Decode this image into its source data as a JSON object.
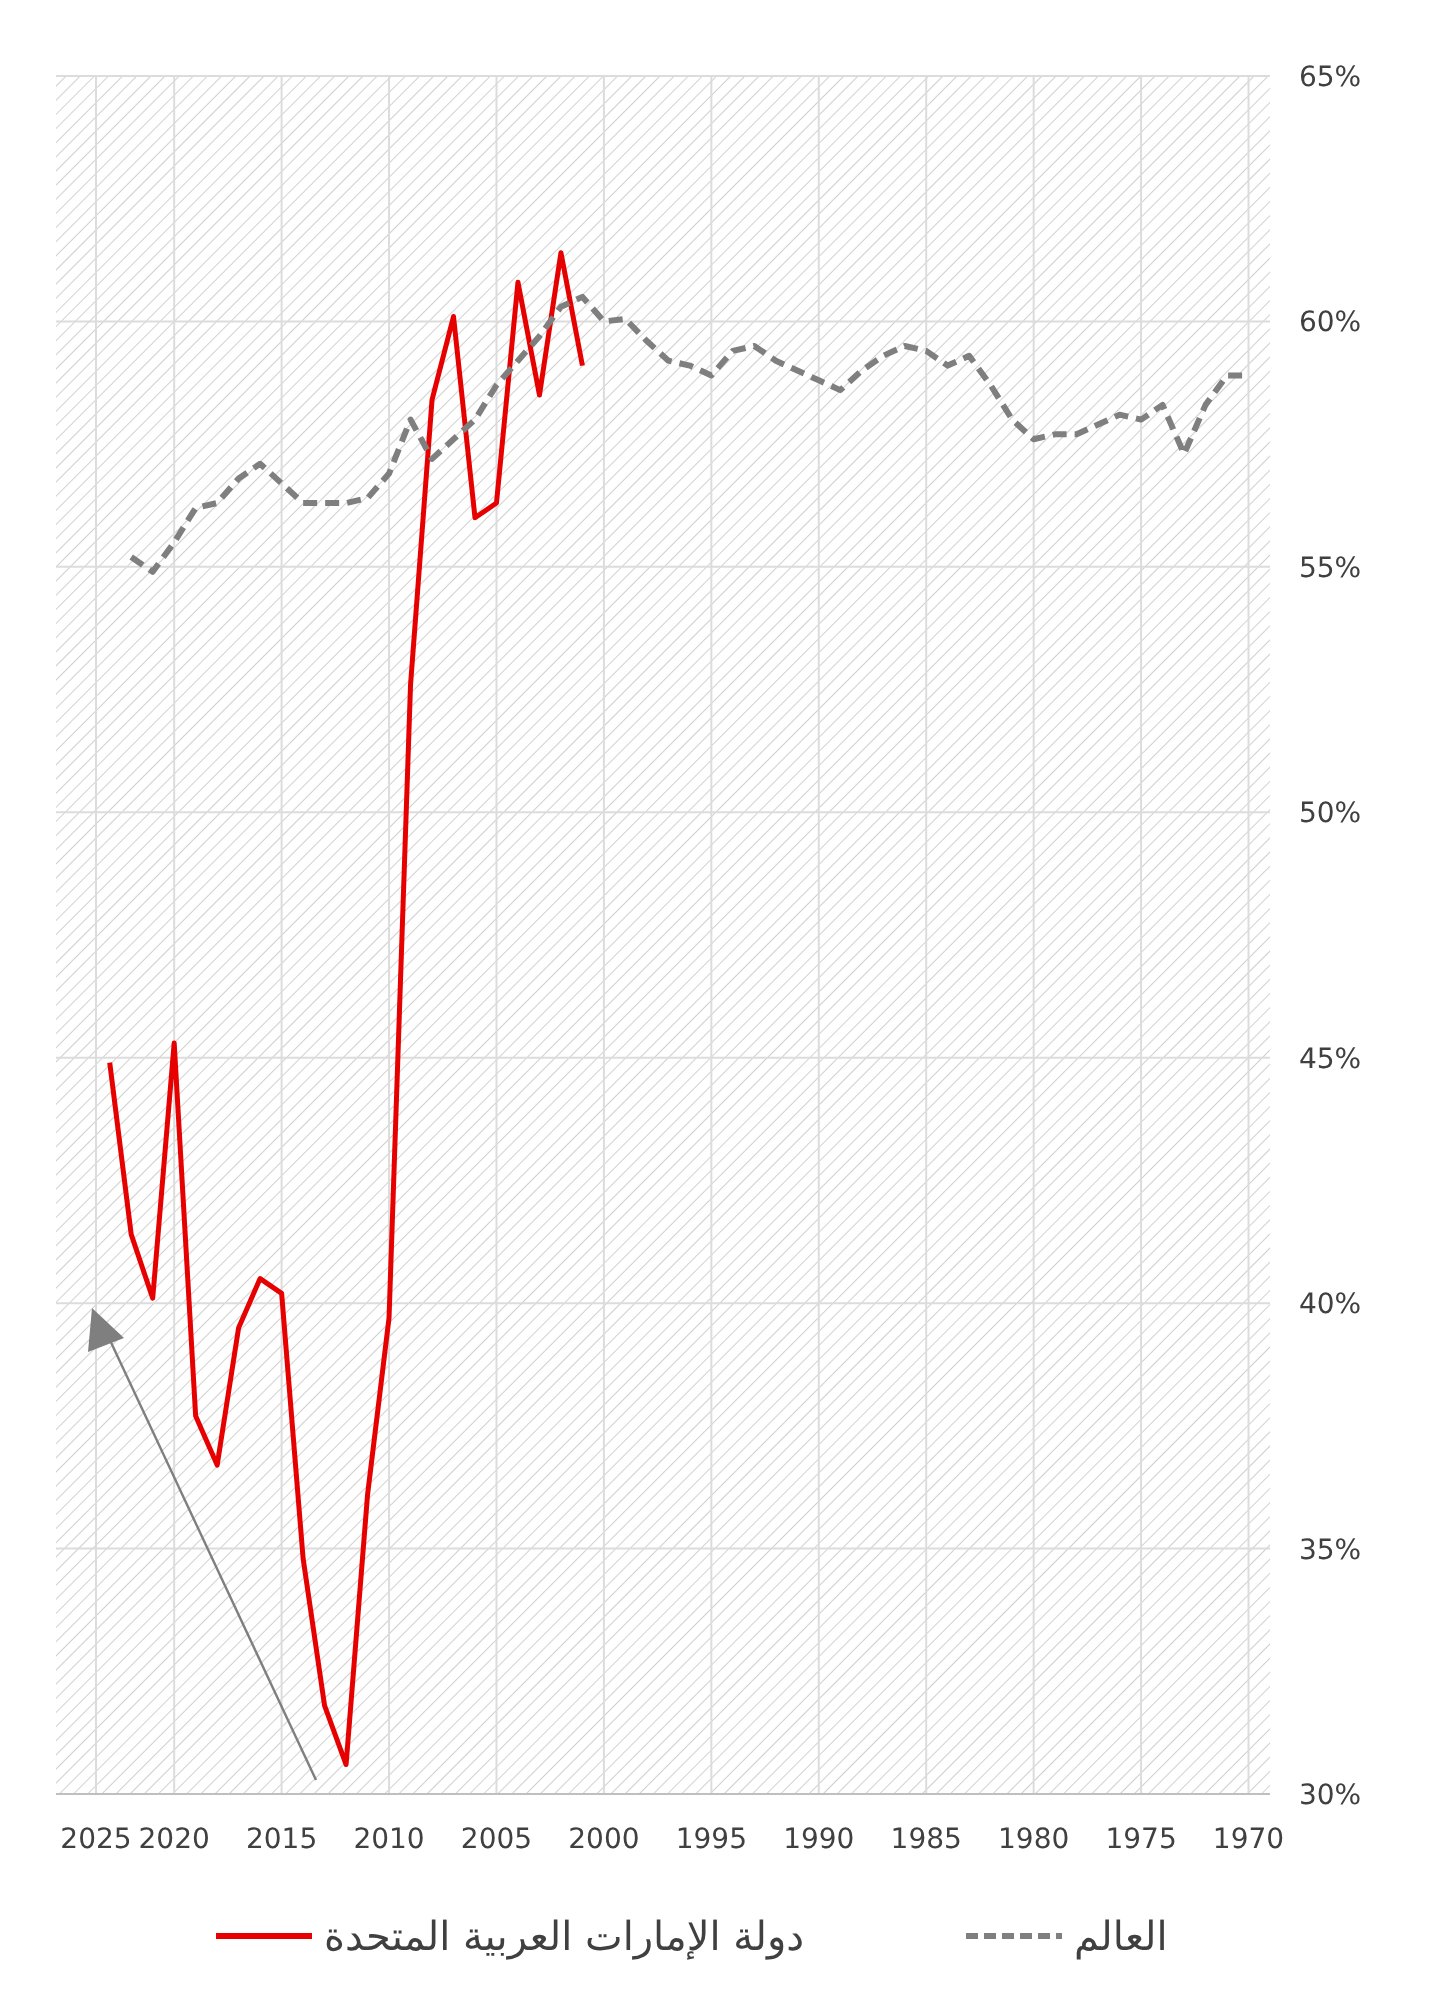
{
  "chart_data": {
    "type": "line",
    "x": [
      2023,
      2022,
      2021,
      2020,
      2019,
      2018,
      2017,
      2016,
      2015,
      2014,
      2013,
      2012,
      2011,
      2010,
      2009,
      2008,
      2007,
      2006,
      2005,
      2004,
      2003,
      2002,
      2001
    ],
    "series": [
      {
        "name": "دولة الإمارات العربية المتحدة",
        "color": "#e60000",
        "line_style": "solid",
        "values": [
          44.9,
          41.4,
          40.1,
          45.3,
          37.7,
          36.7,
          39.5,
          40.5,
          40.2,
          34.8,
          31.8,
          30.6,
          36.1,
          39.7,
          52.6,
          58.4,
          60.1,
          56.0,
          56.3,
          60.8,
          58.5,
          61.4,
          59.1
        ]
      },
      {
        "name": "العالم",
        "color": "#7f7f7f",
        "line_style": "dashed",
        "x": [
          2022,
          2021,
          2020,
          2019,
          2018,
          2017,
          2016,
          2015,
          2014,
          2013,
          2012,
          2011,
          2010,
          2009,
          2008,
          2007,
          2006,
          2005,
          2004,
          2003,
          2002,
          2001,
          2000,
          1999,
          1998,
          1997,
          1996,
          1995,
          1994,
          1993,
          1992,
          1991,
          1990,
          1989,
          1988,
          1987,
          1986,
          1985,
          1984,
          1983,
          1982,
          1981,
          1980,
          1979,
          1978,
          1977,
          1976,
          1975,
          1974,
          1973,
          1972,
          1971,
          1970
        ],
        "values": [
          55.2,
          54.9,
          55.5,
          56.2,
          56.3,
          56.8,
          57.1,
          56.7,
          56.3,
          56.3,
          56.3,
          56.4,
          56.9,
          58.0,
          57.2,
          57.6,
          58.0,
          58.7,
          59.2,
          59.7,
          60.3,
          60.5,
          60.0,
          60.05,
          59.6,
          59.2,
          59.1,
          58.9,
          59.4,
          59.5,
          59.2,
          59.0,
          58.8,
          58.6,
          59.0,
          59.3,
          59.5,
          59.4,
          59.1,
          59.3,
          58.7,
          58.0,
          57.6,
          57.7,
          57.7,
          57.9,
          58.1,
          58.0,
          58.3,
          57.3,
          58.3,
          58.9,
          58.9
        ]
      }
    ],
    "xlim": [
      2025.5,
      1969.0
    ],
    "xticks": [
      2025,
      2020,
      2015,
      2010,
      2005,
      2000,
      1995,
      1990,
      1985,
      1980,
      1975,
      1970
    ],
    "ylim": [
      30,
      65
    ],
    "yticks": [
      {
        "value": 30,
        "label": "30%"
      },
      {
        "value": 35,
        "label": "35%"
      },
      {
        "value": 40,
        "label": "40%"
      },
      {
        "value": 45,
        "label": "45%"
      },
      {
        "value": 50,
        "label": "50%"
      },
      {
        "value": 55,
        "label": "55%"
      },
      {
        "value": 60,
        "label": "60%"
      },
      {
        "value": 65,
        "label": "65%"
      }
    ],
    "grid": true,
    "legend": "bottom",
    "marker": "none"
  }
}
